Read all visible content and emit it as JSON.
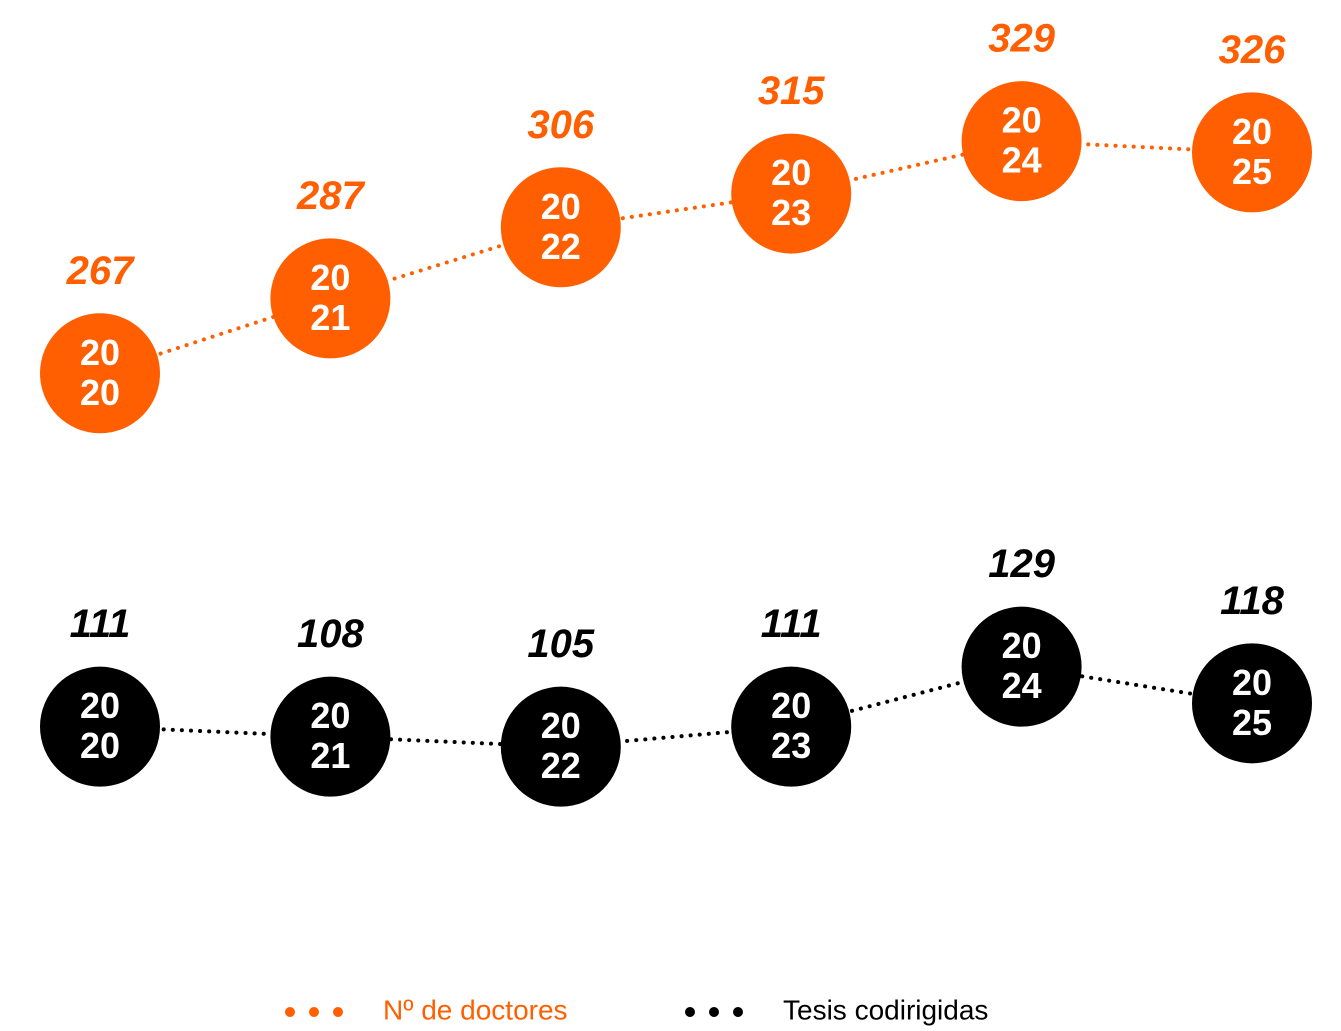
{
  "chart_data": {
    "type": "line",
    "categories": [
      [
        "20",
        "20"
      ],
      [
        "20",
        "21"
      ],
      [
        "20",
        "22"
      ],
      [
        "20",
        "23"
      ],
      [
        "20",
        "24"
      ],
      [
        "20",
        "25"
      ]
    ],
    "series": [
      {
        "name": "Nº de doctores",
        "color": "#ff5f00",
        "values": [
          267,
          287,
          306,
          315,
          329,
          326
        ]
      },
      {
        "name": "Tesis codirigidas",
        "color": "#000000",
        "axis": "y2",
        "values": [
          111,
          108,
          105,
          111,
          129,
          118
        ]
      }
    ],
    "ylim": [
      153,
      340
    ],
    "y2lim": [
      89,
      299
    ],
    "legend": "bottom"
  }
}
